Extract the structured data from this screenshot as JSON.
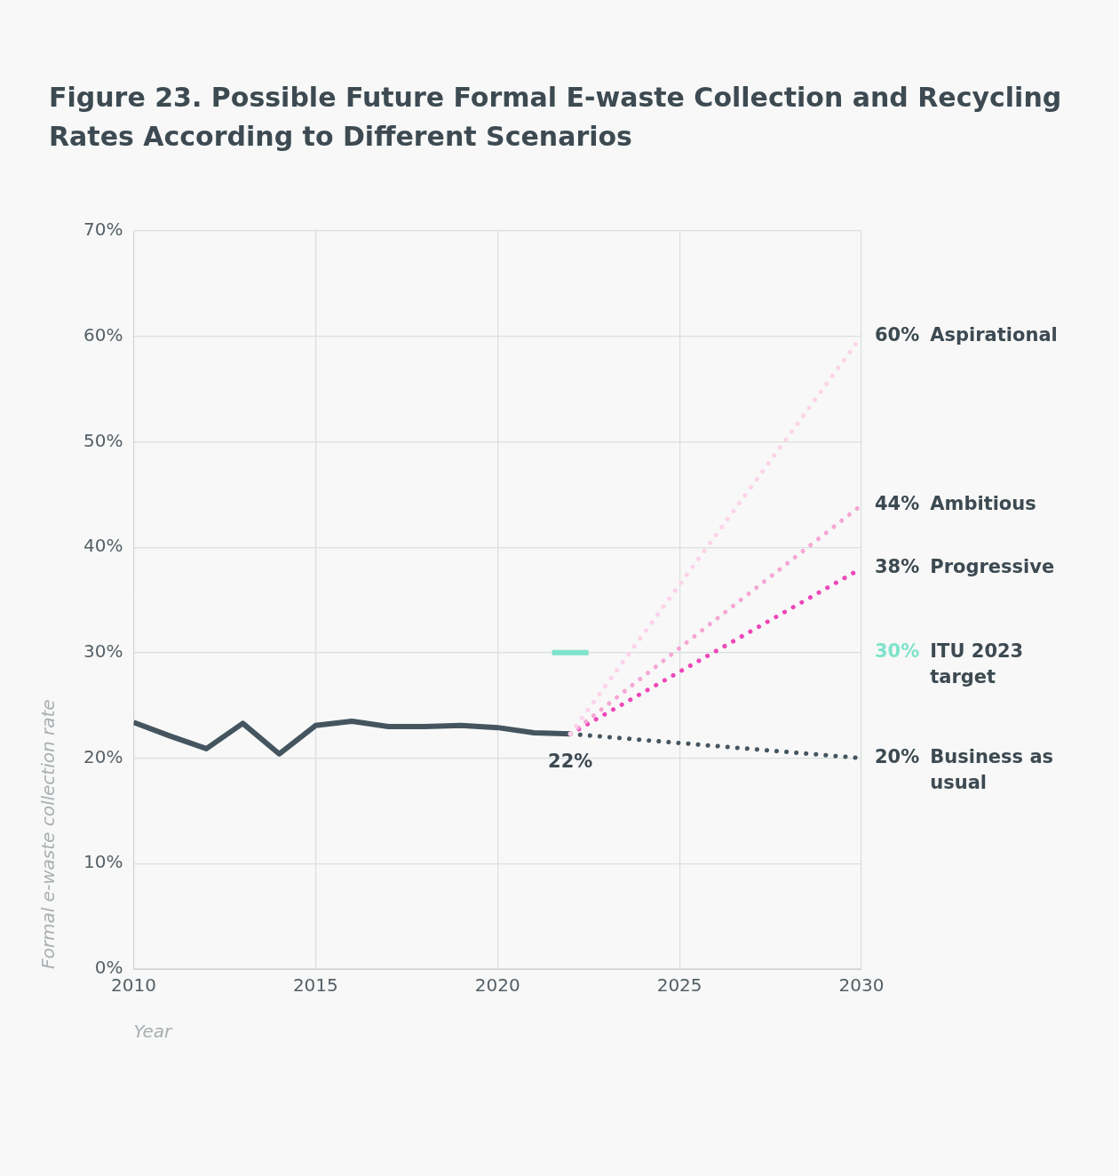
{
  "chart_data": {
    "type": "line",
    "title": "Figure 23. Possible Future Formal E-waste Collection and Recycling Rates According to Different Scenarios",
    "x_label": "Year",
    "y_label": "Formal e-waste collection rate",
    "xlim": [
      2010,
      2030
    ],
    "xticks": [
      2010,
      2015,
      2020,
      2025,
      2030
    ],
    "ylim": [
      0,
      70
    ],
    "yticks": [
      {
        "value": 0,
        "label": "0%"
      },
      {
        "value": 10,
        "label": "10%"
      },
      {
        "value": 20,
        "label": "20%"
      },
      {
        "value": 30,
        "label": "30%"
      },
      {
        "value": 40,
        "label": "40%"
      },
      {
        "value": 50,
        "label": "50%"
      },
      {
        "value": 60,
        "label": "60%"
      },
      {
        "value": 70,
        "label": "70%"
      }
    ],
    "grid": true,
    "series": [
      {
        "name": "Aspirational",
        "color": "#fdd3ea",
        "line_style": "dotted",
        "x": [
          2022,
          2030
        ],
        "values": [
          22.3,
          60
        ],
        "value_labels": [
          null,
          "60%"
        ]
      },
      {
        "name": "Ambitious",
        "color": "#f6a6d6",
        "line_style": "dotted",
        "x": [
          2022,
          2030
        ],
        "values": [
          22.3,
          44
        ],
        "value_labels": [
          null,
          "44%"
        ]
      },
      {
        "name": "Progressive",
        "color": "#ee46b9",
        "line_style": "dotted",
        "x": [
          2022,
          2030
        ],
        "values": [
          22.3,
          38
        ],
        "value_labels": [
          null,
          "38%"
        ]
      },
      {
        "name": "ITU 2023 target",
        "color": "#7fe3cb",
        "line_style": "solid",
        "x": [
          2021.5,
          2022.5
        ],
        "values": [
          30,
          30
        ],
        "value_labels": [
          null,
          "30%"
        ]
      },
      {
        "name": "Business as usual",
        "color": "#455560",
        "line_style": "dotted",
        "x": [
          2022,
          2030
        ],
        "values": [
          22.3,
          20
        ],
        "value_labels": [
          null,
          "20%"
        ]
      },
      {
        "color": "#455560",
        "line_style": "solid",
        "x": [
          2010,
          2011,
          2012,
          2013,
          2014,
          2015,
          2016,
          2017,
          2018,
          2019,
          2020,
          2021,
          2022
        ],
        "values": [
          23.4,
          22.1,
          20.9,
          23.3,
          20.4,
          23.1,
          23.5,
          23.0,
          23.0,
          23.1,
          22.9,
          22.4,
          22.3
        ],
        "value_labels": [
          null,
          null,
          null,
          null,
          null,
          null,
          null,
          null,
          null,
          null,
          null,
          null,
          "22%"
        ]
      }
    ]
  }
}
